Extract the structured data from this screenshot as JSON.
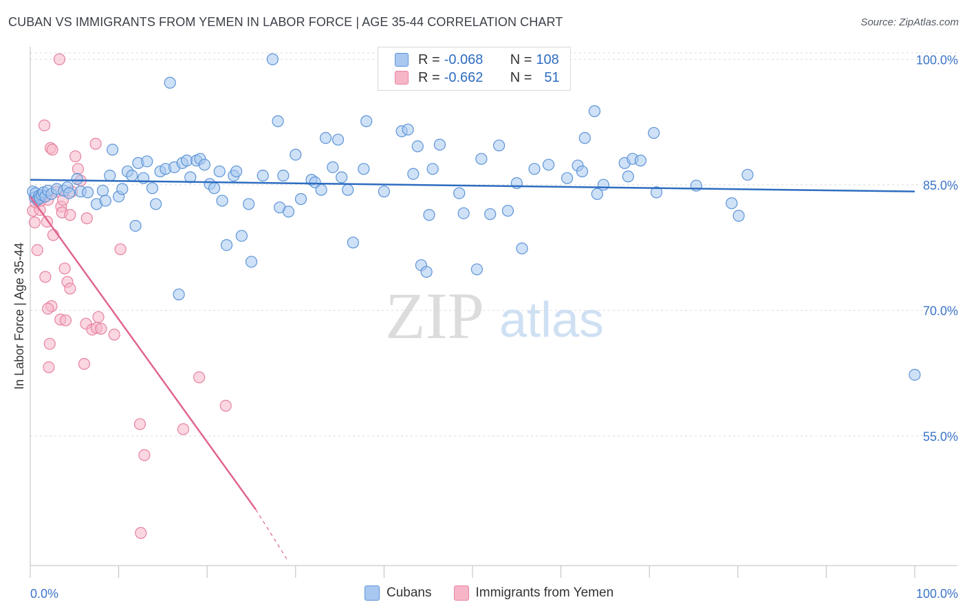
{
  "header": {
    "title": "CUBAN VS IMMIGRANTS FROM YEMEN IN LABOR FORCE | AGE 35-44 CORRELATION CHART",
    "source": "Source: ZipAtlas.com"
  },
  "watermark": {
    "zip": "ZIP",
    "atlas": "atlas"
  },
  "legend": {
    "rows": [
      {
        "r_label": "R =",
        "r_value": "-0.068",
        "n_label": "N =",
        "n_value": "108",
        "color": "#a8c8f0"
      },
      {
        "r_label": "R =",
        "r_value": "-0.662",
        "n_label": "N =",
        "n_value": "51",
        "color": "#f6b6c8"
      }
    ]
  },
  "bottom_legend": [
    {
      "label": "Cubans",
      "color": "#a8c8f0"
    },
    {
      "label": "Immigrants from Yemen",
      "color": "#f6b6c8"
    }
  ],
  "chart_data": {
    "type": "scatter",
    "title": "CUBAN VS IMMIGRANTS FROM YEMEN IN LABOR FORCE | AGE 35-44 CORRELATION CHART",
    "xlabel": "",
    "ylabel": "In Labor Force | Age 35-44",
    "xlim": [
      0,
      100
    ],
    "ylim": [
      39.5,
      101.5
    ],
    "x_tick_labels": [
      "0.0%",
      "100.0%"
    ],
    "y_ticks": [
      55,
      70,
      85,
      100
    ],
    "y_tick_labels": [
      "55.0%",
      "70.0%",
      "85.0%",
      "100.0%"
    ],
    "grid": true,
    "colors": {
      "cubans_fill": "#a8c8f0",
      "cubans_stroke": "#5b93d6",
      "cubans_line": "#2d6cc0",
      "yemen_fill": "#f6b6c8",
      "yemen_stroke": "#e6819f",
      "yemen_line": "#e0648d",
      "tick_label": "#3b74c8"
    },
    "series": [
      {
        "name": "Cubans",
        "trend": {
          "x": [
            0,
            100
          ],
          "y": [
            85.6,
            84.2
          ]
        },
        "points": [
          [
            0.3,
            84.2
          ],
          [
            0.5,
            83.5
          ],
          [
            0.6,
            84.0
          ],
          [
            0.8,
            83.2
          ],
          [
            1.0,
            83.7
          ],
          [
            1.1,
            83.4
          ],
          [
            1.3,
            83.8
          ],
          [
            1.5,
            84.1
          ],
          [
            1.7,
            83.6
          ],
          [
            2.0,
            84.3
          ],
          [
            2.4,
            83.9
          ],
          [
            3.0,
            84.5
          ],
          [
            3.8,
            84.3
          ],
          [
            4.2,
            84.7
          ],
          [
            4.4,
            84.0
          ],
          [
            5.3,
            85.7
          ],
          [
            5.7,
            84.2
          ],
          [
            6.5,
            84.1
          ],
          [
            7.5,
            82.7
          ],
          [
            8.2,
            84.3
          ],
          [
            8.5,
            83.1
          ],
          [
            9.0,
            86.1
          ],
          [
            9.3,
            89.2
          ],
          [
            10.0,
            83.6
          ],
          [
            10.4,
            84.5
          ],
          [
            11.0,
            86.6
          ],
          [
            11.5,
            86.1
          ],
          [
            11.9,
            80.1
          ],
          [
            12.2,
            87.6
          ],
          [
            12.8,
            85.8
          ],
          [
            13.2,
            87.8
          ],
          [
            13.8,
            84.6
          ],
          [
            14.2,
            82.7
          ],
          [
            14.7,
            86.6
          ],
          [
            15.3,
            86.9
          ],
          [
            15.8,
            97.2
          ],
          [
            16.3,
            87.1
          ],
          [
            16.8,
            71.9
          ],
          [
            17.2,
            87.6
          ],
          [
            17.7,
            87.9
          ],
          [
            18.1,
            85.9
          ],
          [
            18.8,
            87.9
          ],
          [
            19.2,
            88.1
          ],
          [
            19.7,
            87.4
          ],
          [
            20.3,
            85.1
          ],
          [
            20.8,
            84.6
          ],
          [
            21.4,
            86.6
          ],
          [
            21.7,
            83.1
          ],
          [
            22.2,
            77.8
          ],
          [
            23.0,
            86.1
          ],
          [
            23.3,
            86.6
          ],
          [
            23.9,
            78.9
          ],
          [
            24.7,
            82.7
          ],
          [
            25.0,
            75.8
          ],
          [
            26.3,
            86.1
          ],
          [
            27.4,
            100.0
          ],
          [
            28.0,
            92.6
          ],
          [
            28.2,
            82.3
          ],
          [
            28.6,
            86.1
          ],
          [
            29.2,
            81.8
          ],
          [
            30.0,
            88.6
          ],
          [
            30.6,
            83.3
          ],
          [
            31.8,
            85.6
          ],
          [
            32.2,
            85.3
          ],
          [
            32.9,
            84.4
          ],
          [
            33.4,
            90.6
          ],
          [
            34.2,
            87.1
          ],
          [
            34.8,
            90.4
          ],
          [
            35.2,
            85.9
          ],
          [
            35.9,
            84.4
          ],
          [
            36.5,
            78.1
          ],
          [
            37.7,
            86.9
          ],
          [
            38.0,
            92.6
          ],
          [
            40.0,
            84.2
          ],
          [
            42.0,
            91.4
          ],
          [
            42.7,
            91.6
          ],
          [
            43.3,
            86.3
          ],
          [
            43.8,
            89.6
          ],
          [
            44.2,
            75.4
          ],
          [
            44.8,
            74.6
          ],
          [
            45.1,
            81.4
          ],
          [
            45.5,
            86.9
          ],
          [
            46.3,
            89.8
          ],
          [
            48.5,
            84.0
          ],
          [
            49.0,
            81.6
          ],
          [
            50.5,
            74.9
          ],
          [
            51.0,
            88.1
          ],
          [
            52.0,
            81.5
          ],
          [
            53.0,
            89.7
          ],
          [
            54.0,
            81.9
          ],
          [
            55.0,
            85.2
          ],
          [
            55.6,
            77.4
          ],
          [
            57.0,
            86.9
          ],
          [
            58.6,
            87.4
          ],
          [
            60.7,
            85.8
          ],
          [
            61.9,
            87.3
          ],
          [
            62.4,
            86.6
          ],
          [
            62.7,
            90.6
          ],
          [
            63.8,
            93.8
          ],
          [
            64.1,
            83.9
          ],
          [
            64.8,
            85.0
          ],
          [
            67.2,
            87.6
          ],
          [
            67.6,
            86.0
          ],
          [
            68.1,
            88.1
          ],
          [
            69.0,
            87.9
          ],
          [
            70.5,
            91.2
          ],
          [
            70.8,
            84.1
          ],
          [
            75.3,
            84.9
          ],
          [
            79.3,
            82.8
          ],
          [
            80.1,
            81.3
          ],
          [
            81.1,
            86.2
          ],
          [
            100.0,
            62.3
          ]
        ]
      },
      {
        "name": "Immigrants from Yemen",
        "trend": {
          "x": [
            0,
            25.5
          ],
          "y": [
            83.6,
            46.2
          ]
        },
        "trend_dashed": {
          "x": [
            25.5,
            29.0
          ],
          "y": [
            46.2,
            40.3
          ]
        },
        "points": [
          [
            0.3,
            81.9
          ],
          [
            0.5,
            80.5
          ],
          [
            0.6,
            82.9
          ],
          [
            0.8,
            77.2
          ],
          [
            1.0,
            83.4
          ],
          [
            1.1,
            82.0
          ],
          [
            1.2,
            83.1
          ],
          [
            1.4,
            83.6
          ],
          [
            1.6,
            92.1
          ],
          [
            1.7,
            74.0
          ],
          [
            1.9,
            80.6
          ],
          [
            2.0,
            83.2
          ],
          [
            2.2,
            66.0
          ],
          [
            2.1,
            63.2
          ],
          [
            2.4,
            70.5
          ],
          [
            2.0,
            70.2
          ],
          [
            2.3,
            89.4
          ],
          [
            2.5,
            89.2
          ],
          [
            2.6,
            79.0
          ],
          [
            3.0,
            84.2
          ],
          [
            3.3,
            100.0
          ],
          [
            3.4,
            68.9
          ],
          [
            3.5,
            82.4
          ],
          [
            3.6,
            81.7
          ],
          [
            3.7,
            83.2
          ],
          [
            3.9,
            75.0
          ],
          [
            4.0,
            68.8
          ],
          [
            4.2,
            73.4
          ],
          [
            4.5,
            81.4
          ],
          [
            4.5,
            72.6
          ],
          [
            4.7,
            84.2
          ],
          [
            5.1,
            88.4
          ],
          [
            5.4,
            86.9
          ],
          [
            5.7,
            85.5
          ],
          [
            6.1,
            63.6
          ],
          [
            6.3,
            68.4
          ],
          [
            6.4,
            81.0
          ],
          [
            7.0,
            67.7
          ],
          [
            7.4,
            89.9
          ],
          [
            7.5,
            67.9
          ],
          [
            7.7,
            69.2
          ],
          [
            8.0,
            67.8
          ],
          [
            9.5,
            67.1
          ],
          [
            10.2,
            77.3
          ],
          [
            12.4,
            56.4
          ],
          [
            12.9,
            52.7
          ],
          [
            12.5,
            43.4
          ],
          [
            17.3,
            55.8
          ],
          [
            19.1,
            62.0
          ],
          [
            22.1,
            58.6
          ]
        ]
      }
    ]
  }
}
